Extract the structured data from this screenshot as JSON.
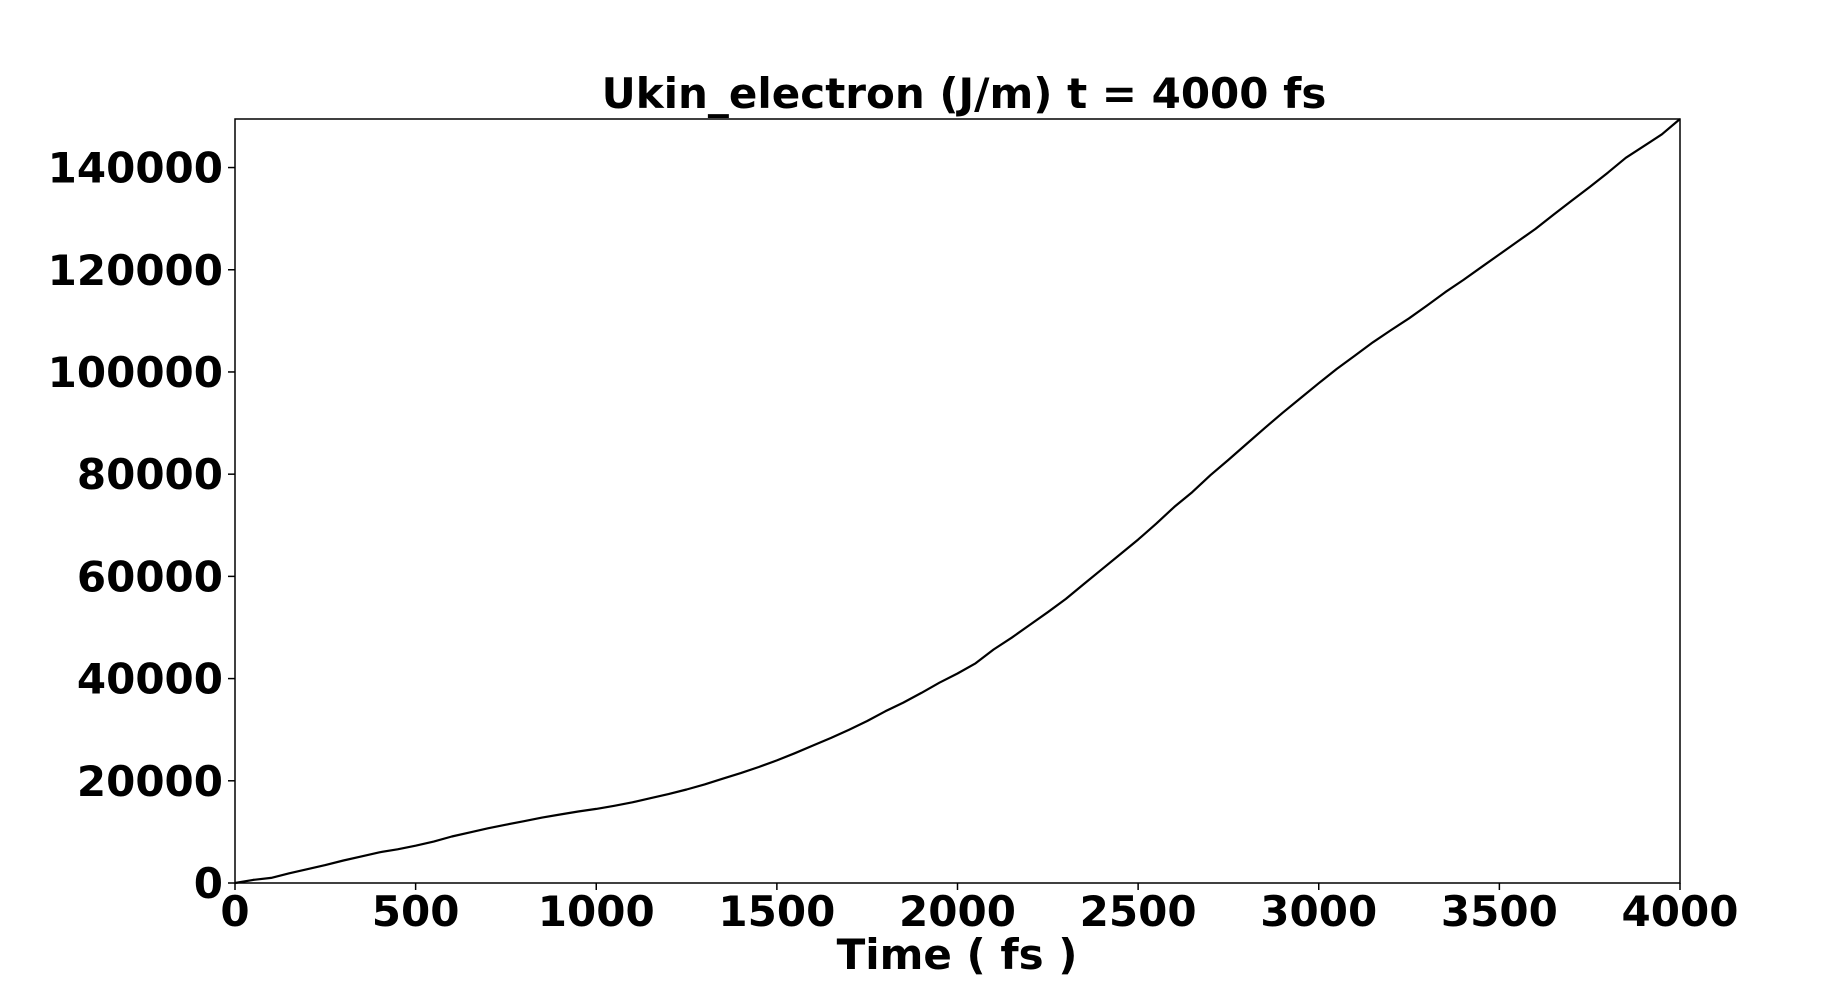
{
  "chart_data": {
    "type": "line",
    "title": "Ukin_electron (J/m) t = 4000 fs",
    "xlabel": "Time ( fs )",
    "ylabel": "",
    "xlim": [
      0,
      4000
    ],
    "ylim": [
      0,
      149500
    ],
    "xticks": [
      0,
      500,
      1000,
      1500,
      2000,
      2500,
      3000,
      3500,
      4000
    ],
    "yticks": [
      0,
      20000,
      40000,
      60000,
      80000,
      100000,
      120000,
      140000
    ],
    "grid": false,
    "legend": "none",
    "series": [
      {
        "color": "#000000",
        "x": [
          0,
          50,
          100,
          150,
          200,
          250,
          300,
          350,
          400,
          450,
          500,
          550,
          600,
          650,
          700,
          750,
          800,
          850,
          900,
          950,
          1000,
          1050,
          1100,
          1150,
          1200,
          1250,
          1300,
          1350,
          1400,
          1450,
          1500,
          1550,
          1600,
          1650,
          1700,
          1750,
          1800,
          1850,
          1900,
          1950,
          2000,
          2050,
          2100,
          2150,
          2200,
          2250,
          2300,
          2350,
          2400,
          2450,
          2500,
          2550,
          2600,
          2650,
          2700,
          2750,
          2800,
          2850,
          2900,
          2950,
          3000,
          3050,
          3100,
          3150,
          3200,
          3250,
          3300,
          3350,
          3400,
          3450,
          3500,
          3550,
          3600,
          3650,
          3700,
          3750,
          3800,
          3850,
          3900,
          3950,
          4000
        ],
        "y": [
          0,
          600,
          1000,
          1900,
          2700,
          3500,
          4400,
          5200,
          6000,
          6600,
          7300,
          8100,
          9100,
          9900,
          10700,
          11400,
          12100,
          12800,
          13400,
          14000,
          14500,
          15100,
          15800,
          16600,
          17400,
          18300,
          19300,
          20400,
          21500,
          22700,
          24000,
          25400,
          26900,
          28400,
          30000,
          31700,
          33600,
          35300,
          37200,
          39200,
          41000,
          43000,
          45700,
          48000,
          50500,
          53000,
          55600,
          58500,
          61400,
          64300,
          67200,
          70300,
          73600,
          76500,
          79800,
          82800,
          85900,
          89000,
          92000,
          94900,
          97800,
          100600,
          103200,
          105800,
          108200,
          110500,
          113000,
          115600,
          118000,
          120500,
          123000,
          125500,
          128000,
          130800,
          133500,
          136200,
          139000,
          141900,
          144200,
          146500,
          149500
        ]
      }
    ]
  }
}
